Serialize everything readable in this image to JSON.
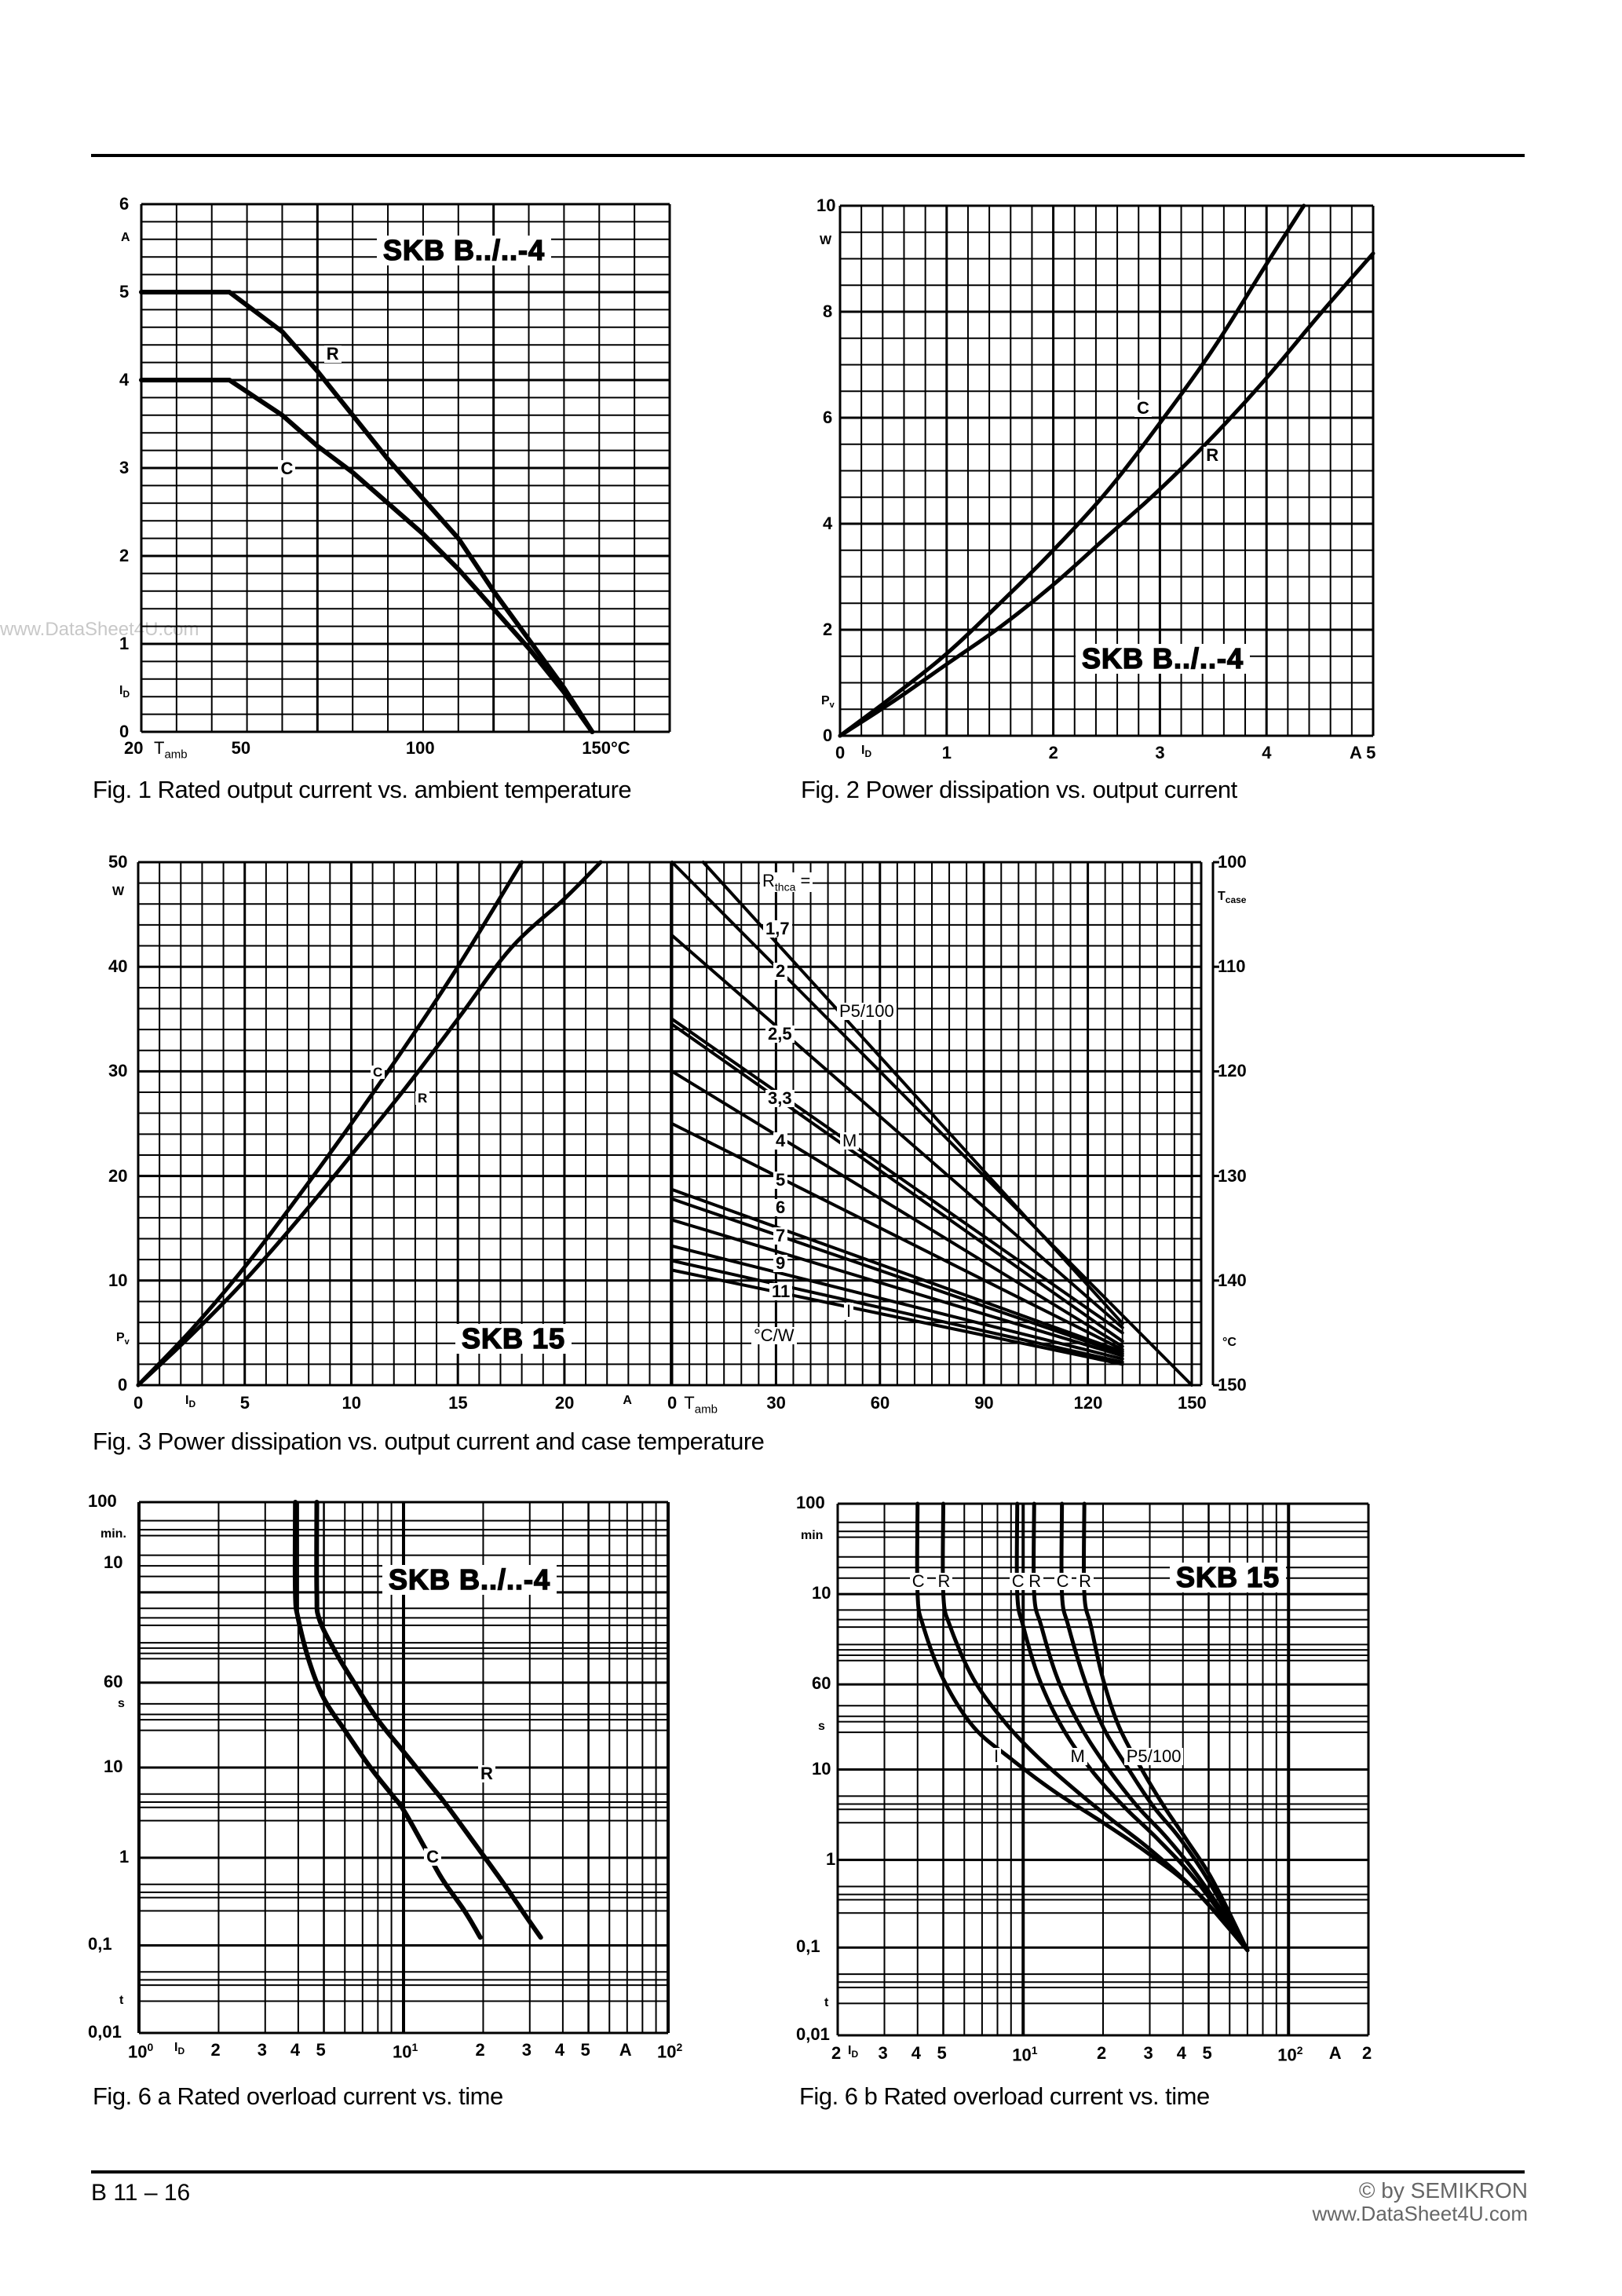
{
  "page": {
    "footer_left": "B 11 – 16",
    "footer_right_1": "© by SEMIKRON",
    "footer_right_2": "www.DataSheet4U.com",
    "watermark": "www.DataSheet4U.com"
  },
  "chart_data": [
    {
      "id": "fig1",
      "type": "line",
      "title": "Fig. 1  Rated output current vs. ambient temperature",
      "badge": "SKB B../..-4",
      "xlabel": "Tamb",
      "xunit": "°C",
      "ylabel": "ID",
      "yunit": "A",
      "xlim": [
        20,
        170
      ],
      "ylim": [
        0,
        6
      ],
      "x_ticks": [
        {
          "v": 20,
          "t": "20"
        },
        {
          "v": 50,
          "t": "50"
        },
        {
          "v": 100,
          "t": "100"
        },
        {
          "v": 150,
          "t": "150°C"
        }
      ],
      "y_ticks": [
        {
          "v": 0,
          "t": "0"
        },
        {
          "v": 1,
          "t": "1"
        },
        {
          "v": 2,
          "t": "2"
        },
        {
          "v": 3,
          "t": "3"
        },
        {
          "v": 4,
          "t": "4"
        },
        {
          "v": 5,
          "t": "5"
        },
        {
          "v": 6,
          "t": "6"
        }
      ],
      "grid": {
        "x_step": 10,
        "y_step": 0.2,
        "major_y": 1
      },
      "series": [
        {
          "name": "R",
          "x": [
            20,
            45,
            60,
            70,
            80,
            90,
            100,
            110,
            120,
            130,
            140,
            148
          ],
          "y": [
            5,
            5,
            4.55,
            4.1,
            3.6,
            3.1,
            2.65,
            2.2,
            1.6,
            1.05,
            0.5,
            0
          ]
        },
        {
          "name": "C",
          "x": [
            20,
            45,
            60,
            70,
            80,
            90,
            100,
            110,
            120,
            130,
            140,
            148
          ],
          "y": [
            4,
            4,
            3.6,
            3.25,
            2.95,
            2.6,
            2.25,
            1.85,
            1.4,
            0.95,
            0.45,
            0
          ]
        }
      ]
    },
    {
      "id": "fig2",
      "type": "line",
      "title": "Fig. 2  Power dissipation vs. output current",
      "badge": "SKB B../..-4",
      "xlabel": "ID",
      "xunit": "A",
      "ylabel": "Pv",
      "yunit": "W",
      "xlim": [
        0,
        5
      ],
      "ylim": [
        0,
        10
      ],
      "x_ticks": [
        {
          "v": 0,
          "t": "0"
        },
        {
          "v": 1,
          "t": "1"
        },
        {
          "v": 2,
          "t": "2"
        },
        {
          "v": 3,
          "t": "3"
        },
        {
          "v": 4,
          "t": "4"
        },
        {
          "v": 5,
          "t": "A 5"
        }
      ],
      "y_ticks": [
        {
          "v": 0,
          "t": "0"
        },
        {
          "v": 2,
          "t": "2"
        },
        {
          "v": 4,
          "t": "4"
        },
        {
          "v": 6,
          "t": "6"
        },
        {
          "v": 8,
          "t": "8"
        },
        {
          "v": 10,
          "t": "10"
        }
      ],
      "grid": {
        "x_step": 0.2,
        "y_step": 0.5,
        "major_x": 1,
        "major_y": 2
      },
      "series": [
        {
          "name": "C",
          "x": [
            0,
            0.5,
            1,
            1.5,
            2,
            2.5,
            3,
            3.5,
            4,
            4.35
          ],
          "y": [
            0,
            0.75,
            1.55,
            2.5,
            3.5,
            4.6,
            5.9,
            7.3,
            8.9,
            10
          ]
        },
        {
          "name": "R",
          "x": [
            0,
            0.5,
            1,
            1.5,
            2,
            2.5,
            3,
            3.5,
            4,
            4.5,
            5
          ],
          "y": [
            0,
            0.65,
            1.35,
            2.05,
            2.85,
            3.75,
            4.65,
            5.65,
            6.75,
            7.95,
            9.1
          ]
        }
      ]
    },
    {
      "id": "fig3",
      "type": "line",
      "title": "Fig. 3  Power dissipation vs. output current and case temperature",
      "badge": "SKB 15",
      "left_panel": {
        "xlabel": "ID",
        "xunit": "A",
        "ylabel": "Pv",
        "yunit": "W",
        "xlim": [
          0,
          25
        ],
        "ylim": [
          0,
          50
        ],
        "x_ticks": [
          {
            "v": 0,
            "t": "0"
          },
          {
            "v": 5,
            "t": "5"
          },
          {
            "v": 10,
            "t": "10"
          },
          {
            "v": 15,
            "t": "15"
          },
          {
            "v": 20,
            "t": "20"
          },
          {
            "v": 23,
            "t": "A"
          }
        ],
        "y_ticks": [
          {
            "v": 0,
            "t": "0"
          },
          {
            "v": 10,
            "t": "10"
          },
          {
            "v": 20,
            "t": "20"
          },
          {
            "v": 30,
            "t": "30"
          },
          {
            "v": 40,
            "t": "40"
          },
          {
            "v": 50,
            "t": "50"
          }
        ],
        "series": [
          {
            "name": "C",
            "x": [
              0,
              2.5,
              5,
              7.5,
              10,
              12.5,
              15,
              18
            ],
            "y": [
              0,
              5.3,
              11.3,
              18,
              25,
              32.3,
              40,
              50
            ]
          },
          {
            "name": "R",
            "x": [
              0,
              2.5,
              5,
              7.5,
              10,
              12.5,
              15,
              17.5,
              20,
              21.7
            ],
            "y": [
              0,
              4.8,
              10,
              15.8,
              22,
              28.3,
              35,
              41.8,
              46.5,
              50
            ]
          }
        ]
      },
      "right_panel": {
        "xlabel": "Tamb",
        "xunit": "°C",
        "y2label": "Tcase",
        "y2unit": "°C",
        "xlim": [
          0,
          150
        ],
        "y2lim": [
          100,
          150
        ],
        "x_ticks": [
          {
            "v": 0,
            "t": "0"
          },
          {
            "v": 30,
            "t": "30"
          },
          {
            "v": 60,
            "t": "60"
          },
          {
            "v": 90,
            "t": "90"
          },
          {
            "v": 120,
            "t": "120"
          },
          {
            "v": 150,
            "t": "150"
          }
        ],
        "y2_ticks": [
          {
            "v": 100,
            "t": "100"
          },
          {
            "v": 110,
            "t": "110"
          },
          {
            "v": 120,
            "t": "120"
          },
          {
            "v": 130,
            "t": "130"
          },
          {
            "v": 140,
            "t": "140"
          },
          {
            "v": 150,
            "t": "150"
          }
        ],
        "legend_title": "Rthca =",
        "legend_unit": "°C/W",
        "series": [
          {
            "name": "P5/100",
            "x": [
              0,
              150
            ],
            "y": [
              50,
              0
            ]
          },
          {
            "name": "1.7",
            "x": [
              9,
              130
            ],
            "y": [
              50,
              5.9
            ]
          },
          {
            "name": "2",
            "x": [
              0,
              130
            ],
            "y": [
              43,
              5.5
            ]
          },
          {
            "name": "M",
            "x": [
              0,
              130
            ],
            "y": [
              35,
              5
            ]
          },
          {
            "name": "2.5",
            "x": [
              0,
              130
            ],
            "y": [
              34.5,
              4.2
            ]
          },
          {
            "name": "3.3",
            "x": [
              0,
              130
            ],
            "y": [
              30,
              3.7
            ]
          },
          {
            "name": "4",
            "x": [
              0,
              130
            ],
            "y": [
              25,
              3.4
            ]
          },
          {
            "name": "5",
            "x": [
              0,
              130
            ],
            "y": [
              18.7,
              3.2
            ]
          },
          {
            "name": "6",
            "x": [
              0,
              130
            ],
            "y": [
              17.8,
              3.0
            ]
          },
          {
            "name": "7",
            "x": [
              0,
              130
            ],
            "y": [
              15.8,
              2.8
            ]
          },
          {
            "name": "9",
            "x": [
              0,
              130
            ],
            "y": [
              13.3,
              2.5
            ]
          },
          {
            "name": "11",
            "x": [
              0,
              130
            ],
            "y": [
              11.9,
              2.2
            ]
          },
          {
            "name": "I",
            "x": [
              0,
              130
            ],
            "y": [
              11.0,
              2.0
            ]
          }
        ],
        "labels": [
          "1,7",
          "2",
          "2,5",
          "3,3",
          "4",
          "5",
          "6",
          "7",
          "9",
          "11",
          "P5/100",
          "M",
          "I"
        ]
      }
    },
    {
      "id": "fig6a",
      "type": "line",
      "title": "Fig. 6 a  Rated overload current vs. time",
      "badge": "SKB B../..-4",
      "xscale": "log",
      "yscale": "log",
      "xlabel": "ID",
      "xunit": "A",
      "ylabel": "t",
      "xlim": [
        1,
        100
      ],
      "x_ticks": [
        {
          "v": 1,
          "t": "10⁰"
        },
        {
          "v": 2,
          "t": "2"
        },
        {
          "v": 3,
          "t": "3"
        },
        {
          "v": 4,
          "t": "4"
        },
        {
          "v": 5,
          "t": "5"
        },
        {
          "v": 10,
          "t": "10¹"
        },
        {
          "v": 20,
          "t": "2"
        },
        {
          "v": 30,
          "t": "3"
        },
        {
          "v": 40,
          "t": "4"
        },
        {
          "v": 50,
          "t": "5"
        },
        {
          "v": 70,
          "t": "A"
        },
        {
          "v": 100,
          "t": "10²"
        }
      ],
      "y_ticks_text": [
        "100 min.",
        "10",
        "60 s",
        "10",
        "1",
        "0,1",
        "0,01"
      ],
      "series": [
        {
          "name": "C",
          "x": [
            3.9,
            3.9,
            4.0,
            4.4,
            5.0,
            6.0,
            7.5,
            9.0,
            10.0,
            12.0,
            14.0,
            17.0,
            19.5
          ],
          "y_frac": [
            0,
            0.17,
            0.22,
            0.3,
            0.37,
            0.43,
            0.5,
            0.55,
            0.58,
            0.65,
            0.71,
            0.77,
            0.82
          ]
        },
        {
          "name": "R",
          "x": [
            4.7,
            4.7,
            4.8,
            5.5,
            6.5,
            8.0,
            10.0,
            12.5,
            14.5,
            19.0,
            24.0,
            29.0,
            33.0
          ],
          "y_frac": [
            0,
            0.17,
            0.22,
            0.28,
            0.34,
            0.41,
            0.47,
            0.53,
            0.57,
            0.65,
            0.72,
            0.78,
            0.82
          ]
        }
      ]
    },
    {
      "id": "fig6b",
      "type": "line",
      "title": "Fig. 6 b  Rated overload current vs. time",
      "badge": "SKB 15",
      "xscale": "log",
      "yscale": "log",
      "xlabel": "ID",
      "xunit": "A",
      "ylabel": "t",
      "xlim": [
        2,
        200
      ],
      "x_ticks": [
        {
          "v": 2,
          "t": "2"
        },
        {
          "v": 3,
          "t": "3"
        },
        {
          "v": 4,
          "t": "4"
        },
        {
          "v": 5,
          "t": "5"
        },
        {
          "v": 10,
          "t": "10¹"
        },
        {
          "v": 20,
          "t": "2"
        },
        {
          "v": 30,
          "t": "3"
        },
        {
          "v": 40,
          "t": "4"
        },
        {
          "v": 50,
          "t": "5"
        },
        {
          "v": 100,
          "t": "10²"
        },
        {
          "v": 150,
          "t": "A"
        },
        {
          "v": 200,
          "t": "2"
        }
      ],
      "y_ticks_text": [
        "100 min",
        "10",
        "60 s",
        "10",
        "1",
        "0,1",
        "0,01"
      ],
      "group_labels": [
        "I",
        "M",
        "P5/100"
      ],
      "series": [
        {
          "name": "I-C",
          "x": [
            4,
            4,
            4.2,
            5,
            6.5,
            9,
            13,
            20,
            30,
            45,
            70
          ],
          "y_frac": [
            0,
            0.17,
            0.23,
            0.33,
            0.42,
            0.48,
            0.54,
            0.6,
            0.66,
            0.73,
            0.84
          ]
        },
        {
          "name": "I-R",
          "x": [
            5,
            5,
            5.3,
            6.5,
            8.5,
            11,
            15,
            21,
            30,
            45,
            70
          ],
          "y_frac": [
            0,
            0.17,
            0.23,
            0.33,
            0.41,
            0.47,
            0.53,
            0.59,
            0.65,
            0.73,
            0.84
          ]
        },
        {
          "name": "M-C",
          "x": [
            9.5,
            9.5,
            10,
            11.5,
            14,
            18,
            24,
            32,
            45,
            70
          ],
          "y_frac": [
            0,
            0.17,
            0.23,
            0.33,
            0.42,
            0.5,
            0.57,
            0.63,
            0.71,
            0.84
          ]
        },
        {
          "name": "M-R",
          "x": [
            11,
            11,
            11.7,
            13.5,
            16.5,
            21,
            27,
            35,
            47,
            70
          ],
          "y_frac": [
            0,
            0.17,
            0.23,
            0.33,
            0.42,
            0.5,
            0.57,
            0.63,
            0.71,
            0.84
          ]
        },
        {
          "name": "P-C",
          "x": [
            14,
            14,
            14.8,
            17,
            20,
            25,
            31,
            39,
            50,
            70
          ],
          "y_frac": [
            0,
            0.17,
            0.23,
            0.33,
            0.42,
            0.5,
            0.57,
            0.63,
            0.71,
            0.84
          ]
        },
        {
          "name": "P-R",
          "x": [
            17,
            17,
            18,
            20,
            23,
            28,
            34,
            41,
            52,
            70
          ],
          "y_frac": [
            0,
            0.17,
            0.23,
            0.33,
            0.42,
            0.5,
            0.57,
            0.63,
            0.71,
            0.84
          ]
        }
      ]
    }
  ]
}
